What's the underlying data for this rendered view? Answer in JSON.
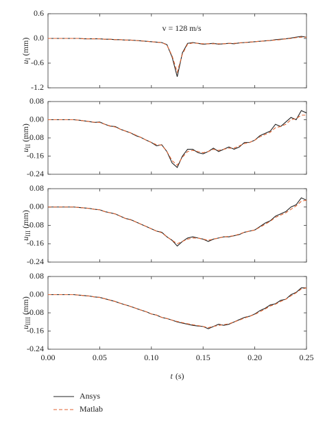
{
  "chart_data": [
    {
      "type": "line",
      "annotation": "v = 128 m/s",
      "y_label": {
        "symbol": "u",
        "sub": "I",
        "unit": "(mm)"
      },
      "x": [
        0,
        0.005,
        0.01,
        0.015,
        0.02,
        0.025,
        0.03,
        0.035,
        0.04,
        0.045,
        0.05,
        0.055,
        0.06,
        0.065,
        0.07,
        0.075,
        0.08,
        0.085,
        0.09,
        0.095,
        0.1,
        0.105,
        0.11,
        0.115,
        0.12,
        0.125,
        0.13,
        0.135,
        0.14,
        0.145,
        0.15,
        0.155,
        0.16,
        0.165,
        0.17,
        0.175,
        0.18,
        0.185,
        0.19,
        0.195,
        0.2,
        0.205,
        0.21,
        0.215,
        0.22,
        0.225,
        0.23,
        0.235,
        0.24,
        0.245,
        0.25
      ],
      "series": [
        {
          "name": "Ansys",
          "color": "#222222",
          "linestyle": "solid",
          "values": [
            0,
            0,
            0,
            0,
            0,
            0,
            0,
            -0.01,
            -0.01,
            -0.01,
            -0.01,
            -0.02,
            -0.02,
            -0.03,
            -0.03,
            -0.04,
            -0.04,
            -0.05,
            -0.06,
            -0.07,
            -0.08,
            -0.09,
            -0.1,
            -0.15,
            -0.45,
            -0.93,
            -0.35,
            -0.12,
            -0.1,
            -0.12,
            -0.14,
            -0.13,
            -0.12,
            -0.14,
            -0.13,
            -0.12,
            -0.13,
            -0.11,
            -0.1,
            -0.09,
            -0.08,
            -0.07,
            -0.06,
            -0.05,
            -0.03,
            -0.02,
            -0.01,
            0.01,
            0.03,
            0.05,
            0.03
          ]
        },
        {
          "name": "Matlab",
          "color": "#e0622f",
          "linestyle": "dashed",
          "values": [
            0,
            0,
            0,
            0,
            0,
            0,
            0,
            -0.01,
            -0.01,
            -0.01,
            -0.01,
            -0.02,
            -0.02,
            -0.03,
            -0.03,
            -0.04,
            -0.04,
            -0.05,
            -0.06,
            -0.07,
            -0.08,
            -0.09,
            -0.1,
            -0.16,
            -0.42,
            -0.82,
            -0.38,
            -0.14,
            -0.11,
            -0.12,
            -0.13,
            -0.13,
            -0.13,
            -0.13,
            -0.13,
            -0.12,
            -0.12,
            -0.11,
            -0.1,
            -0.09,
            -0.08,
            -0.07,
            -0.06,
            -0.05,
            -0.04,
            -0.03,
            -0.01,
            0.0,
            0.02,
            0.03,
            0.03
          ]
        }
      ],
      "xlim": [
        0,
        0.25
      ],
      "xticks": [
        {
          "value": 0,
          "label": "0.00"
        },
        0.05,
        {
          "value": 0.1,
          "label": "0.10"
        },
        0.15,
        {
          "value": 0.2,
          "label": "0.20"
        },
        0.25
      ],
      "ylim": [
        -1.2,
        0.6
      ],
      "yticks": [
        0.6,
        {
          "value": 0,
          "label": "0.0"
        },
        -0.6,
        -1.2
      ]
    },
    {
      "type": "line",
      "y_label": {
        "symbol": "u",
        "sub": "II",
        "unit": "(mm)"
      },
      "x": [
        0,
        0.005,
        0.01,
        0.015,
        0.02,
        0.025,
        0.03,
        0.035,
        0.04,
        0.045,
        0.05,
        0.055,
        0.06,
        0.065,
        0.07,
        0.075,
        0.08,
        0.085,
        0.09,
        0.095,
        0.1,
        0.105,
        0.11,
        0.115,
        0.12,
        0.125,
        0.13,
        0.135,
        0.14,
        0.145,
        0.15,
        0.155,
        0.16,
        0.165,
        0.17,
        0.175,
        0.18,
        0.185,
        0.19,
        0.195,
        0.2,
        0.205,
        0.21,
        0.215,
        0.22,
        0.225,
        0.23,
        0.235,
        0.24,
        0.245,
        0.25
      ],
      "series": [
        {
          "name": "Ansys",
          "color": "#222222",
          "linestyle": "solid",
          "values": [
            0,
            0,
            0,
            0,
            0,
            0,
            -0.002,
            -0.005,
            -0.008,
            -0.012,
            -0.01,
            -0.02,
            -0.028,
            -0.03,
            -0.042,
            -0.05,
            -0.058,
            -0.07,
            -0.078,
            -0.09,
            -0.1,
            -0.115,
            -0.11,
            -0.14,
            -0.19,
            -0.21,
            -0.16,
            -0.13,
            -0.13,
            -0.145,
            -0.15,
            -0.14,
            -0.125,
            -0.14,
            -0.13,
            -0.12,
            -0.13,
            -0.12,
            -0.1,
            -0.1,
            -0.09,
            -0.07,
            -0.06,
            -0.05,
            -0.02,
            -0.03,
            -0.01,
            0.01,
            0.0,
            0.04,
            0.03
          ]
        },
        {
          "name": "Matlab",
          "color": "#e0622f",
          "linestyle": "dashed",
          "values": [
            0,
            0,
            0,
            0,
            0,
            0,
            -0.002,
            -0.005,
            -0.008,
            -0.011,
            -0.012,
            -0.02,
            -0.027,
            -0.032,
            -0.042,
            -0.05,
            -0.058,
            -0.068,
            -0.078,
            -0.09,
            -0.1,
            -0.11,
            -0.112,
            -0.14,
            -0.18,
            -0.2,
            -0.165,
            -0.14,
            -0.135,
            -0.14,
            -0.145,
            -0.14,
            -0.13,
            -0.135,
            -0.13,
            -0.125,
            -0.125,
            -0.115,
            -0.105,
            -0.1,
            -0.09,
            -0.075,
            -0.065,
            -0.055,
            -0.035,
            -0.03,
            -0.02,
            0.0,
            0.005,
            0.02,
            0.02
          ]
        }
      ],
      "xlim": [
        0,
        0.25
      ],
      "xticks": [
        {
          "value": 0,
          "label": "0.00"
        },
        0.05,
        {
          "value": 0.1,
          "label": "0.10"
        },
        0.15,
        {
          "value": 0.2,
          "label": "0.20"
        },
        0.25
      ],
      "ylim": [
        -0.24,
        0.08
      ],
      "yticks": [
        0.08,
        {
          "value": 0,
          "label": "0.00"
        },
        -0.08,
        -0.16,
        -0.24
      ]
    },
    {
      "type": "line",
      "y_label": {
        "symbol": "u",
        "sub": "III",
        "unit": "(mm)"
      },
      "x": [
        0,
        0.005,
        0.01,
        0.015,
        0.02,
        0.025,
        0.03,
        0.035,
        0.04,
        0.045,
        0.05,
        0.055,
        0.06,
        0.065,
        0.07,
        0.075,
        0.08,
        0.085,
        0.09,
        0.095,
        0.1,
        0.105,
        0.11,
        0.115,
        0.12,
        0.125,
        0.13,
        0.135,
        0.14,
        0.145,
        0.15,
        0.155,
        0.16,
        0.165,
        0.17,
        0.175,
        0.18,
        0.185,
        0.19,
        0.195,
        0.2,
        0.205,
        0.21,
        0.215,
        0.22,
        0.225,
        0.23,
        0.235,
        0.24,
        0.245,
        0.25
      ],
      "series": [
        {
          "name": "Ansys",
          "color": "#222222",
          "linestyle": "solid",
          "values": [
            0,
            0,
            0,
            0,
            0,
            0,
            -0.002,
            -0.004,
            -0.006,
            -0.01,
            -0.012,
            -0.02,
            -0.025,
            -0.03,
            -0.04,
            -0.05,
            -0.055,
            -0.065,
            -0.075,
            -0.085,
            -0.095,
            -0.105,
            -0.11,
            -0.13,
            -0.145,
            -0.17,
            -0.15,
            -0.135,
            -0.13,
            -0.135,
            -0.14,
            -0.15,
            -0.14,
            -0.135,
            -0.13,
            -0.13,
            -0.125,
            -0.12,
            -0.11,
            -0.105,
            -0.1,
            -0.085,
            -0.07,
            -0.06,
            -0.04,
            -0.03,
            -0.02,
            0.0,
            0.01,
            0.04,
            0.03
          ]
        },
        {
          "name": "Matlab",
          "color": "#e0622f",
          "linestyle": "dashed",
          "values": [
            0,
            0,
            0,
            0,
            0,
            0,
            -0.002,
            -0.004,
            -0.006,
            -0.01,
            -0.012,
            -0.02,
            -0.025,
            -0.03,
            -0.04,
            -0.05,
            -0.056,
            -0.065,
            -0.075,
            -0.085,
            -0.095,
            -0.105,
            -0.112,
            -0.13,
            -0.145,
            -0.16,
            -0.15,
            -0.14,
            -0.135,
            -0.135,
            -0.14,
            -0.145,
            -0.14,
            -0.135,
            -0.13,
            -0.128,
            -0.125,
            -0.118,
            -0.11,
            -0.105,
            -0.1,
            -0.088,
            -0.075,
            -0.062,
            -0.045,
            -0.035,
            -0.025,
            -0.01,
            0.005,
            0.025,
            0.03
          ]
        }
      ],
      "xlim": [
        0,
        0.25
      ],
      "xticks": [
        {
          "value": 0,
          "label": "0.00"
        },
        0.05,
        {
          "value": 0.1,
          "label": "0.10"
        },
        0.15,
        {
          "value": 0.2,
          "label": "0.20"
        },
        0.25
      ],
      "ylim": [
        -0.24,
        0.08
      ],
      "yticks": [
        0.08,
        {
          "value": 0,
          "label": "0.00"
        },
        -0.08,
        -0.16,
        -0.24
      ]
    },
    {
      "type": "line",
      "y_label": {
        "symbol": "u",
        "sub": "IIII",
        "unit": "(mm)"
      },
      "x_label": {
        "symbol": "t",
        "unit": "(s)"
      },
      "x": [
        0,
        0.005,
        0.01,
        0.015,
        0.02,
        0.025,
        0.03,
        0.035,
        0.04,
        0.045,
        0.05,
        0.055,
        0.06,
        0.065,
        0.07,
        0.075,
        0.08,
        0.085,
        0.09,
        0.095,
        0.1,
        0.105,
        0.11,
        0.115,
        0.12,
        0.125,
        0.13,
        0.135,
        0.14,
        0.145,
        0.15,
        0.155,
        0.16,
        0.165,
        0.17,
        0.175,
        0.18,
        0.185,
        0.19,
        0.195,
        0.2,
        0.205,
        0.21,
        0.215,
        0.22,
        0.225,
        0.23,
        0.235,
        0.24,
        0.245,
        0.25
      ],
      "series": [
        {
          "name": "Ansys",
          "color": "#222222",
          "linestyle": "solid",
          "values": [
            0,
            0,
            0,
            0,
            0,
            0,
            -0.002,
            -0.004,
            -0.006,
            -0.01,
            -0.012,
            -0.018,
            -0.024,
            -0.03,
            -0.038,
            -0.045,
            -0.052,
            -0.06,
            -0.068,
            -0.075,
            -0.085,
            -0.09,
            -0.1,
            -0.105,
            -0.112,
            -0.12,
            -0.125,
            -0.13,
            -0.135,
            -0.138,
            -0.14,
            -0.15,
            -0.14,
            -0.13,
            -0.135,
            -0.13,
            -0.12,
            -0.11,
            -0.1,
            -0.095,
            -0.085,
            -0.07,
            -0.06,
            -0.045,
            -0.04,
            -0.025,
            -0.02,
            0.0,
            0.01,
            0.03,
            0.03
          ]
        },
        {
          "name": "Matlab",
          "color": "#e0622f",
          "linestyle": "dashed",
          "values": [
            0,
            0,
            0,
            0,
            0,
            0,
            -0.002,
            -0.004,
            -0.006,
            -0.01,
            -0.012,
            -0.018,
            -0.024,
            -0.03,
            -0.038,
            -0.045,
            -0.052,
            -0.06,
            -0.068,
            -0.075,
            -0.085,
            -0.09,
            -0.1,
            -0.105,
            -0.112,
            -0.118,
            -0.123,
            -0.128,
            -0.132,
            -0.136,
            -0.14,
            -0.145,
            -0.14,
            -0.135,
            -0.132,
            -0.128,
            -0.12,
            -0.112,
            -0.103,
            -0.095,
            -0.087,
            -0.075,
            -0.063,
            -0.05,
            -0.042,
            -0.03,
            -0.02,
            -0.005,
            0.008,
            0.025,
            0.03
          ]
        }
      ],
      "xlim": [
        0,
        0.25
      ],
      "xticks": [
        {
          "value": 0,
          "label": "0.00"
        },
        0.05,
        {
          "value": 0.1,
          "label": "0.10"
        },
        0.15,
        {
          "value": 0.2,
          "label": "0.20"
        },
        0.25
      ],
      "ylim": [
        -0.24,
        0.08
      ],
      "yticks": [
        0.08,
        {
          "value": 0,
          "label": "0.00"
        },
        -0.08,
        -0.16,
        -0.24
      ]
    }
  ]
}
